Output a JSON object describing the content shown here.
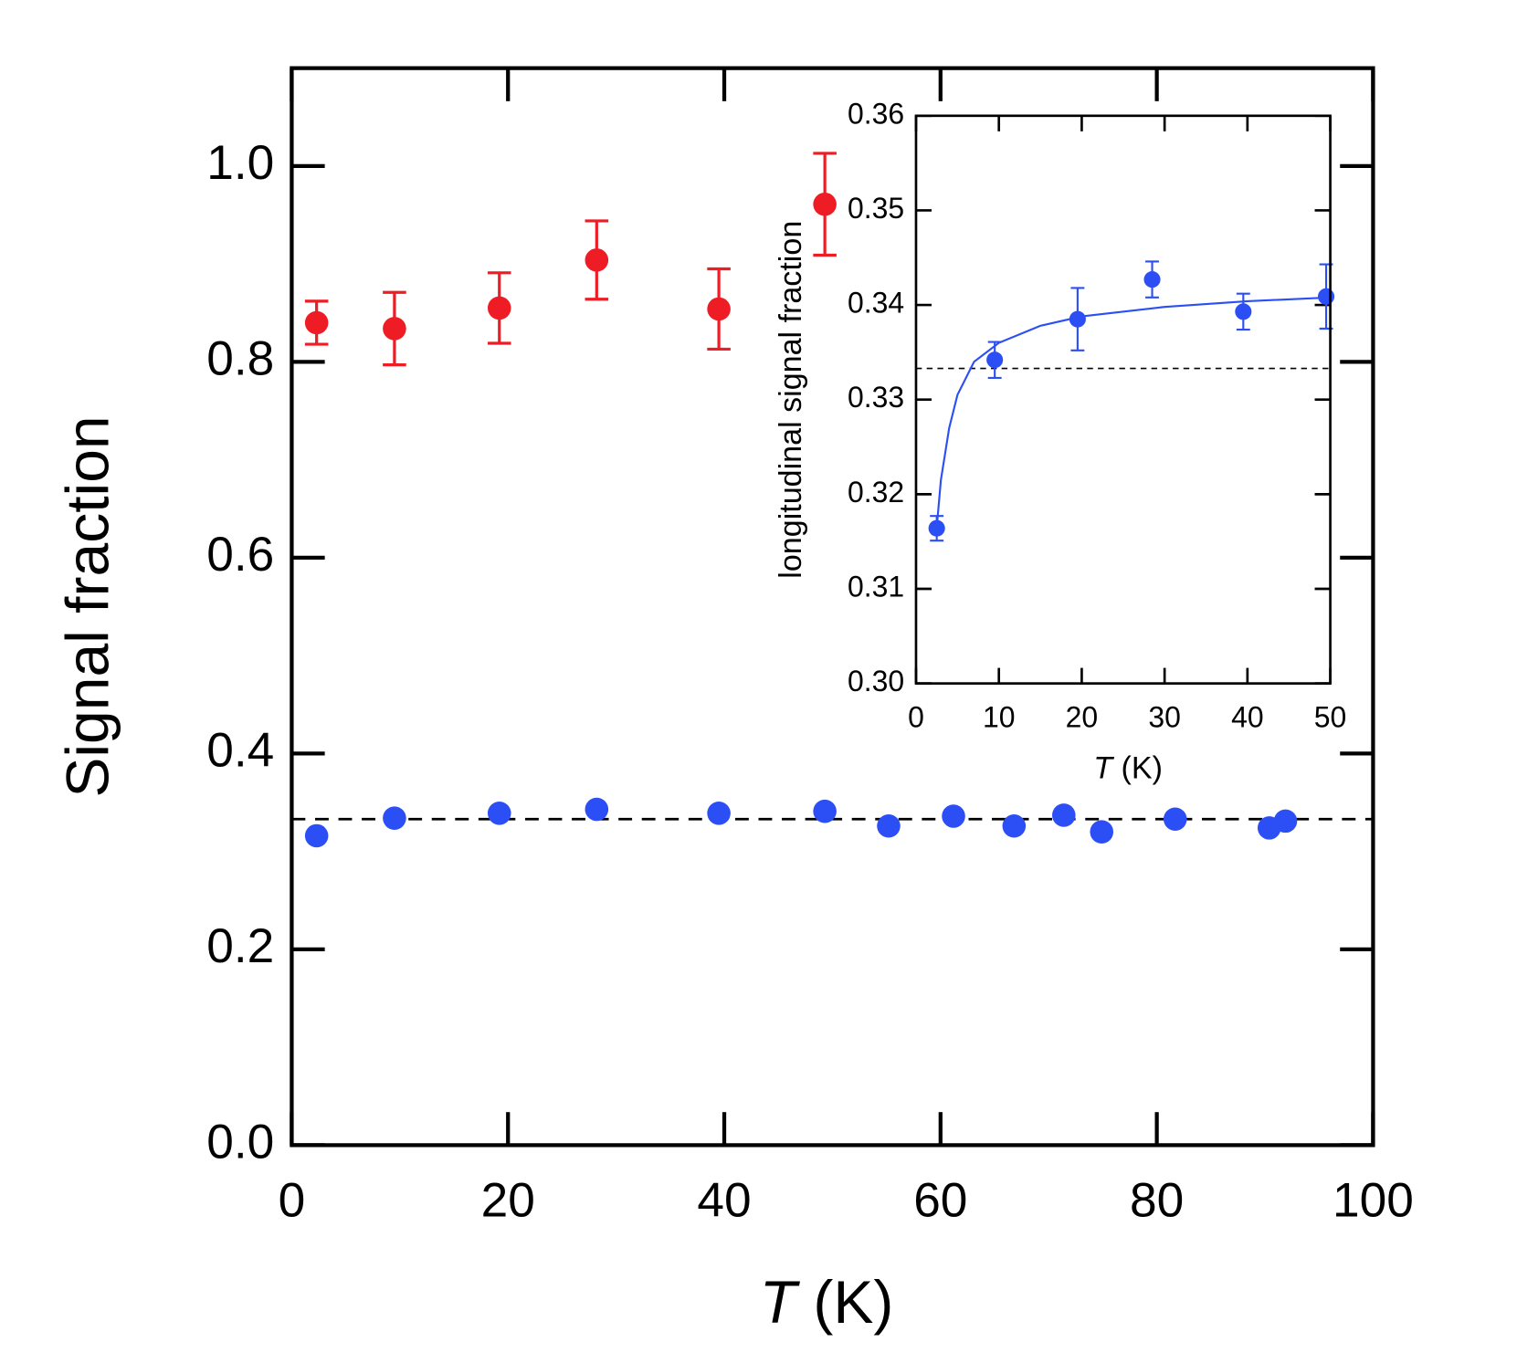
{
  "chart_data": [
    {
      "type": "scatter",
      "x_label_symbol": "T",
      "x_label_unit": "(K)",
      "y_label": "Signal fraction",
      "xlim": [
        0,
        100
      ],
      "ylim": [
        0,
        1.1
      ],
      "xticks": [
        0,
        20,
        40,
        60,
        80,
        100
      ],
      "yticks": [
        {
          "value": 0,
          "label": "0.0"
        },
        0.2,
        0.4,
        0.6,
        0.8,
        {
          "value": 1,
          "label": "1.0"
        }
      ],
      "reference_line": 0.333,
      "series": [
        {
          "color": "#ee1c24",
          "mode": "markers",
          "x": [
            2.3,
            9.5,
            19.2,
            28.2,
            39.5,
            49.3
          ],
          "values": [
            0.84,
            0.834,
            0.855,
            0.904,
            0.854,
            0.961
          ],
          "errors": [
            0.022,
            0.037,
            0.036,
            0.04,
            0.041,
            0.052
          ]
        },
        {
          "color": "#2b4ff5",
          "mode": "markers",
          "x": [
            2.3,
            9.5,
            19.2,
            28.2,
            39.5,
            49.3,
            55.2,
            61.2,
            66.8,
            71.4,
            74.9,
            81.7,
            90.4,
            91.9
          ],
          "values": [
            0.316,
            0.334,
            0.339,
            0.343,
            0.339,
            0.341,
            0.326,
            0.336,
            0.326,
            0.337,
            0.32,
            0.333,
            0.324,
            0.331
          ]
        }
      ]
    },
    {
      "type": "scatter",
      "x_label_symbol": "T",
      "x_label_unit": "(K)",
      "y_label": "longitudinal signal fraction",
      "xlim": [
        0,
        50
      ],
      "ylim": [
        0.3,
        0.36
      ],
      "xticks": [
        0,
        10,
        20,
        30,
        40,
        50
      ],
      "yticks": [
        {
          "value": 0.3,
          "label": "0.30"
        },
        0.31,
        0.32,
        0.33,
        0.34,
        0.35,
        0.36
      ],
      "reference_line": 0.3333,
      "series": [
        {
          "color": "#2b4ff5",
          "mode": "markers",
          "x": [
            2.5,
            9.5,
            19.5,
            28.5,
            39.5,
            49.5
          ],
          "values": [
            0.3164,
            0.3342,
            0.3385,
            0.3427,
            0.3393,
            0.3409
          ],
          "errors": [
            0.0013,
            0.0019,
            0.0033,
            0.0019,
            0.0019,
            0.0034
          ]
        },
        {
          "color": "#2b4ff5",
          "mode": "line",
          "x": [
            2.5,
            3,
            4,
            5,
            7,
            10,
            15,
            20,
            30,
            40,
            50
          ],
          "values": [
            0.3165,
            0.3215,
            0.327,
            0.3305,
            0.334,
            0.336,
            0.3378,
            0.3388,
            0.3398,
            0.3404,
            0.3408
          ]
        }
      ]
    }
  ]
}
